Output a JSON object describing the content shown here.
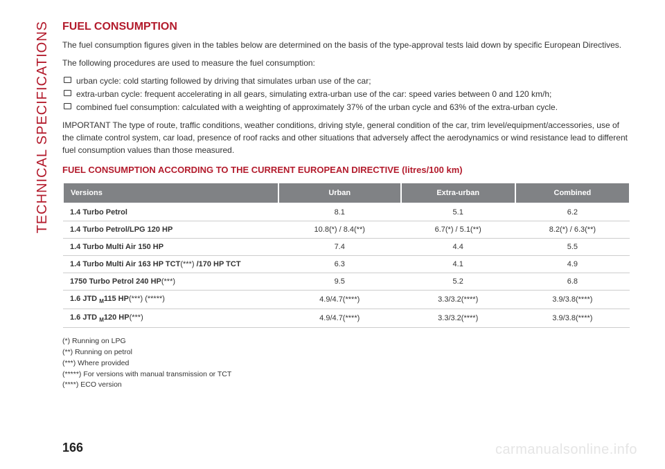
{
  "verticalLabel": "TECHNICAL SPECIFICATIONS",
  "title": "FUEL CONSUMPTION",
  "intro1": "The fuel consumption figures given in the tables below are determined on the basis of the type-approval tests laid down by specific European Directives.",
  "intro2": "The following procedures are used to measure the fuel consumption:",
  "bullets": {
    "b1": "urban cycle: cold starting followed by driving that simulates urban use of the car;",
    "b2": "extra-urban cycle: frequent accelerating in all gears, simulating extra-urban use of the car: speed varies between 0 and 120 km/h;",
    "b3": "combined fuel consumption: calculated with a weighting of approximately 37% of the urban cycle and 63% of the extra-urban cycle."
  },
  "important": "IMPORTANT The type of route, traffic conditions, weather conditions, driving style, general condition of the car, trim level/equipment/accessories, use of the climate control system, car load, presence of roof racks and other situations that adversely affect the aerodynamics or wind resistance lead to different fuel consumption values than those measured.",
  "subtitle": "FUEL CONSUMPTION ACCORDING TO THE CURRENT EUROPEAN DIRECTIVE (litres/100 km)",
  "table": {
    "headers": {
      "h1": "Versions",
      "h2": "Urban",
      "h3": "Extra-urban",
      "h4": "Combined"
    },
    "rows": {
      "r1": {
        "v": "1.4 Turbo Petrol",
        "u": "8.1",
        "e": "5.1",
        "c": "6.2"
      },
      "r2": {
        "v": "1.4 Turbo Petrol/LPG 120 HP",
        "u": "10.8(*) / 8.4(**)",
        "e": "6.7(*) / 5.1(**)",
        "c": "8.2(*) / 6.3(**)"
      },
      "r3": {
        "v": "1.4 Turbo Multi Air 150 HP",
        "u": "7.4",
        "e": "4.4",
        "c": "5.5"
      },
      "r4": {
        "v_pre": "1.4 Turbo Multi Air 163 HP TCT",
        "v_post": "/170 HP TCT",
        "note": "(***)",
        "u": "6.3",
        "e": "4.1",
        "c": "4.9"
      },
      "r5": {
        "v": "1750 Turbo Petrol 240 HP",
        "note": "(***)",
        "u": "9.5",
        "e": "5.2",
        "c": "6.8"
      },
      "r6": {
        "v_pre": "1.6 JTD",
        "v_post": "115 HP",
        "note": "(***) (*****)",
        "u": "4.9/4.7(****)",
        "e": "3.3/3.2(****)",
        "c": "3.9/3.8(****)"
      },
      "r7": {
        "v_pre": "1.6 JTD",
        "v_post": "120 HP",
        "note": "(***)",
        "u": "4.9/4.7(****)",
        "e": "3.3/3.2(****)",
        "c": "3.9/3.8(****)"
      }
    }
  },
  "footnotes": {
    "f1": "(*) Running on LPG",
    "f2": "(**) Running on petrol",
    "f3": "(***) Where provided",
    "f4": "(*****) For versions with manual transmission or TCT",
    "f5": "(****) ECO version"
  },
  "pageNumber": "166",
  "watermark": "carmanualsonline.info"
}
